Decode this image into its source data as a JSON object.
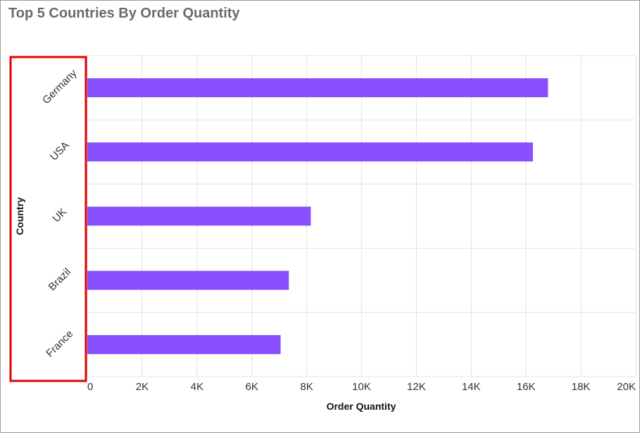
{
  "chart_data": {
    "type": "bar",
    "orientation": "horizontal",
    "title": "Top 5 Countries By Order Quantity",
    "xlabel": "Order Quantity",
    "ylabel": "Country",
    "categories": [
      "Germany",
      "USA",
      "UK",
      "Brazil",
      "France"
    ],
    "values": [
      16800,
      16250,
      8150,
      7350,
      7050
    ],
    "xlim": [
      0,
      20000
    ],
    "xticks": [
      "0",
      "2K",
      "4K",
      "6K",
      "8K",
      "10K",
      "12K",
      "14K",
      "16K",
      "18K",
      "20K"
    ],
    "grid": true,
    "bar_color": "#8a4fff",
    "highlight_color": "#e00000"
  }
}
